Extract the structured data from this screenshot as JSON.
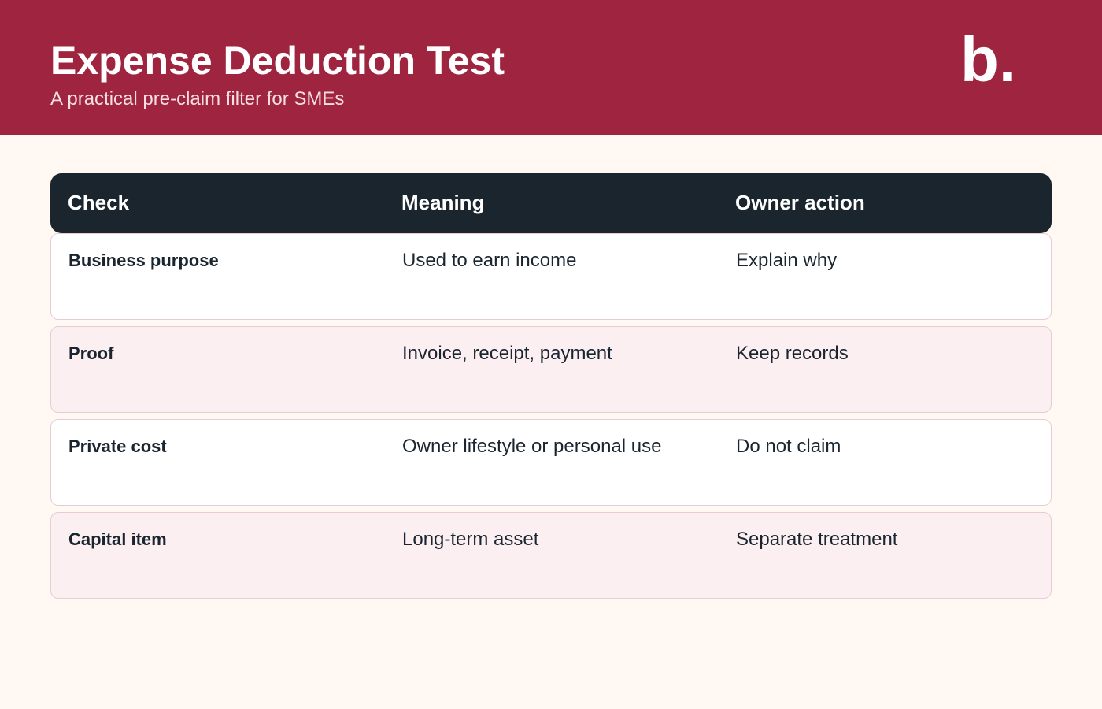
{
  "header": {
    "title": "Expense Deduction Test",
    "subtitle": "A practical pre-claim filter for SMEs",
    "logo": "b."
  },
  "table": {
    "columns": [
      "Check",
      "Meaning",
      "Owner action"
    ],
    "rows": [
      [
        "Business purpose",
        "Used to earn income",
        "Explain why"
      ],
      [
        "Proof",
        "Invoice, receipt, payment",
        "Keep records"
      ],
      [
        "Private cost",
        "Owner lifestyle or personal use",
        "Do not claim"
      ],
      [
        "Capital item",
        "Long-term asset",
        "Separate treatment"
      ]
    ]
  }
}
